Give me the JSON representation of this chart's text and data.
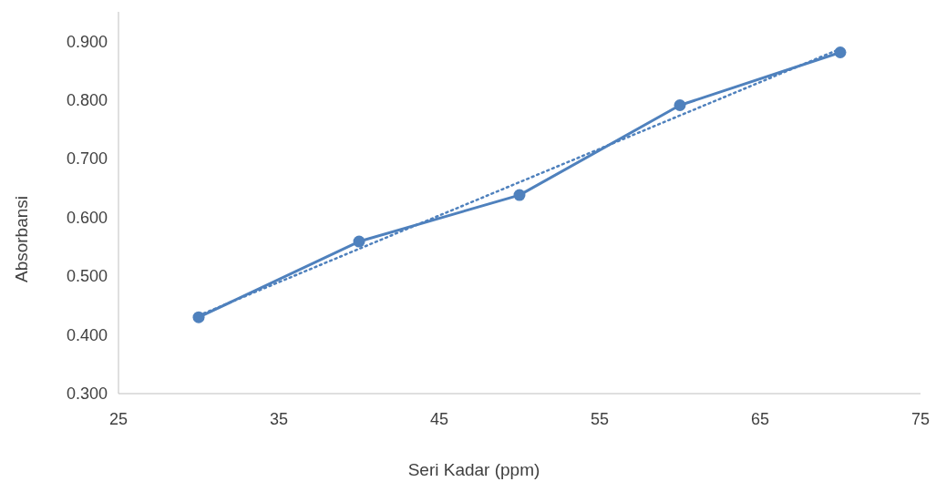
{
  "chart_data": {
    "type": "line",
    "xlabel": "Seri Kadar (ppm)",
    "ylabel": "Absorbansi",
    "x": [
      30,
      40,
      50,
      60,
      70
    ],
    "series": [
      {
        "color": "#4f81bd",
        "values": [
          0.43,
          0.559,
          0.638,
          0.791,
          0.881
        ],
        "marker": "circle",
        "line_style": "solid"
      },
      {
        "type": "line",
        "color": "#4f81bd",
        "x": [
          30,
          70
        ],
        "values": [
          0.433,
          0.887
        ],
        "marker": "none",
        "line_style": "dotted"
      }
    ],
    "xlim": [
      25,
      75
    ],
    "xticks": [
      25,
      35,
      45,
      55,
      65,
      75
    ],
    "ylim": [
      0.3,
      0.95
    ],
    "yticks": [
      {
        "value": 0.3,
        "label": "0.300"
      },
      {
        "value": 0.4,
        "label": "0.400"
      },
      {
        "value": 0.5,
        "label": "0.500"
      },
      {
        "value": 0.6,
        "label": "0.600"
      },
      {
        "value": 0.7,
        "label": "0.700"
      },
      {
        "value": 0.8,
        "label": "0.800"
      },
      {
        "value": 0.9,
        "label": "0.900"
      }
    ],
    "grid": false
  }
}
